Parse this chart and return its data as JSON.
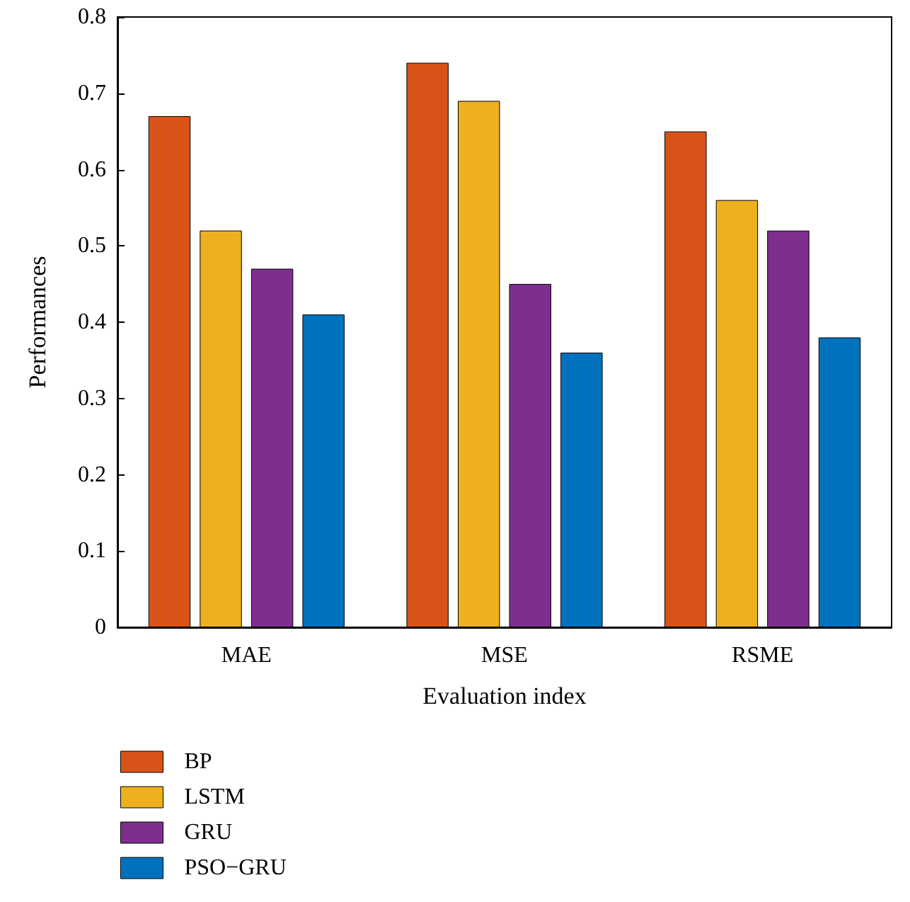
{
  "chart_data": {
    "type": "bar",
    "xlabel": "Evaluation index",
    "ylabel": "Performances",
    "categories": [
      "MAE",
      "MSE",
      "RSME"
    ],
    "series": [
      {
        "name": "BP",
        "color": "#d95319",
        "values": [
          0.67,
          0.74,
          0.65
        ]
      },
      {
        "name": "LSTM",
        "color": "#edb120",
        "values": [
          0.52,
          0.69,
          0.56
        ]
      },
      {
        "name": "GRU",
        "color": "#7e2f8e",
        "values": [
          0.47,
          0.45,
          0.52
        ]
      },
      {
        "name": "PSO−GRU",
        "color": "#0072bd",
        "values": [
          0.41,
          0.36,
          0.38
        ]
      }
    ],
    "ylim": [
      0,
      0.8
    ],
    "yticks": [
      0,
      0.1,
      0.2,
      0.3,
      0.4,
      0.5,
      0.6,
      0.7,
      0.8
    ],
    "grid": false,
    "legend": "bottom left"
  }
}
